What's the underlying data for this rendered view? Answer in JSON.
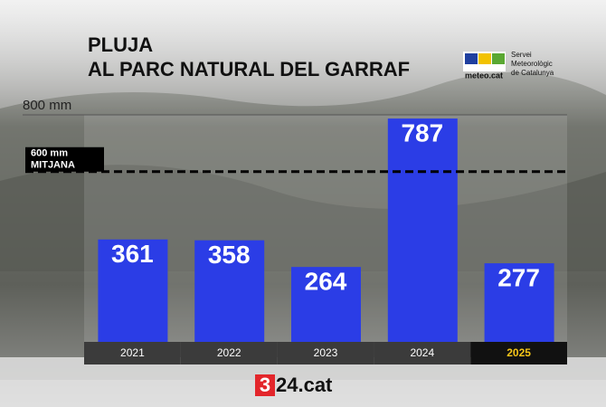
{
  "chart_data": {
    "type": "bar",
    "title": [
      "PLUJA",
      "AL PARC NATURAL DEL GARRAF"
    ],
    "categories": [
      "2021",
      "2022",
      "2023",
      "2024",
      "2025"
    ],
    "values": [
      361,
      358,
      264,
      787,
      277
    ],
    "color": "#2b3de6",
    "category_text_colors": [
      "#ffffff",
      "#ffffff",
      "#ffffff",
      "#ffffff",
      "#f5c518"
    ],
    "ylim": [
      0,
      800
    ],
    "yticks": [
      {
        "value": 800,
        "label": "800 mm"
      }
    ],
    "reference_line": {
      "value": 600,
      "label": "600 mm",
      "sublabel": "MITJANA"
    },
    "source": {
      "logo": "meteo.cat",
      "name": [
        "Servei",
        "Meteorològic",
        "de Catalunya"
      ]
    },
    "brand": [
      "3",
      "24.cat"
    ]
  }
}
